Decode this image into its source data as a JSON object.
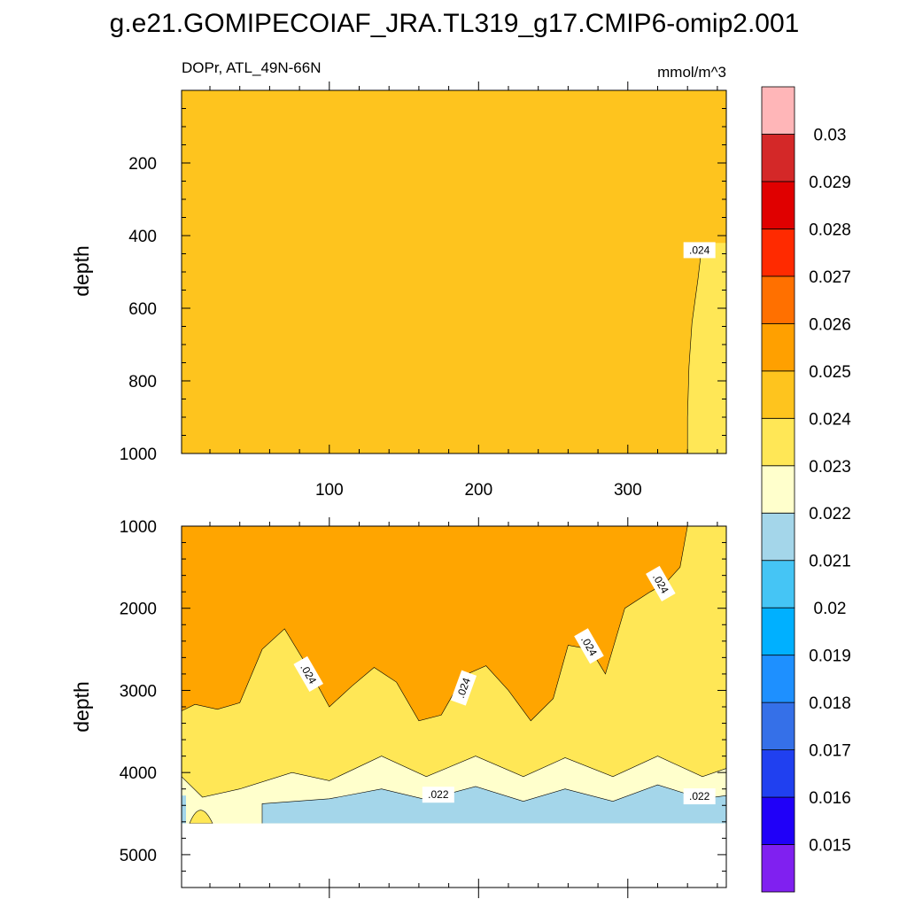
{
  "title": "g.e21.GOMIPECOIAF_JRA.TL319_g17.CMIP6-omip2.001",
  "subtitle_left": "DOPr, ATL_49N-66N",
  "subtitle_right": "mmol/m^3",
  "colors": {
    "c_0235": "#FEC41E",
    "c_0245": "#FFA500",
    "c_0230": "#FFE756",
    "c_0220": "#FFFFCC",
    "c_0215": "#A4D6EA",
    "outline": "#000000"
  },
  "colorbar": {
    "levels": [
      "0.015",
      "0.016",
      "0.017",
      "0.018",
      "0.019",
      "0.02",
      "0.021",
      "0.022",
      "0.023",
      "0.024",
      "0.025",
      "0.026",
      "0.027",
      "0.028",
      "0.029",
      "0.03"
    ],
    "colors_bottom_to_top": [
      "#8020F0",
      "#2000F8",
      "#2040F0",
      "#3570E8",
      "#1E90FF",
      "#00B0FF",
      "#45C5F5",
      "#A4D6EA",
      "#FFFFCC",
      "#FFE756",
      "#FEC41E",
      "#FFA000",
      "#FF7000",
      "#FF2A00",
      "#E00000",
      "#D42828",
      "#FFB6B8"
    ]
  },
  "chart_data": [
    {
      "type": "contour",
      "name": "upper panel",
      "ylabel": "depth",
      "xlim": [
        1,
        366
      ],
      "ylim": [
        0,
        1000
      ],
      "y_reversed": true,
      "x_ticks": [
        100,
        200,
        300
      ],
      "y_ticks": [
        200,
        400,
        600,
        800,
        1000
      ],
      "background_interval": "0.024-0.025",
      "region_023_024": {
        "interval": "0.023-0.024",
        "boundary_x_at_depth": [
          {
            "depth": 420,
            "x": 351
          },
          {
            "depth": 450,
            "x": 349
          },
          {
            "depth": 520,
            "x": 347
          },
          {
            "depth": 580,
            "x": 345
          },
          {
            "depth": 640,
            "x": 343
          },
          {
            "depth": 760,
            "x": 341
          },
          {
            "depth": 900,
            "x": 340
          },
          {
            "depth": 1000,
            "x": 340
          }
        ]
      },
      "contour_labels": [
        {
          "text": ".024",
          "x": 348,
          "depth": 440
        }
      ]
    },
    {
      "type": "contour",
      "name": "lower panel",
      "ylabel": "depth",
      "xlim": [
        1,
        366
      ],
      "ylim": [
        1000,
        5400
      ],
      "y_reversed": true,
      "y_ticks": [
        1000,
        2000,
        3000,
        4000,
        5000
      ],
      "missing_below_depth": 4620,
      "contour_024_depth": [
        {
          "x": 1,
          "depth": 3250
        },
        {
          "x": 10,
          "depth": 3170
        },
        {
          "x": 25,
          "depth": 3230
        },
        {
          "x": 40,
          "depth": 3150
        },
        {
          "x": 55,
          "depth": 2500
        },
        {
          "x": 70,
          "depth": 2250
        },
        {
          "x": 85,
          "depth": 2700
        },
        {
          "x": 100,
          "depth": 3200
        },
        {
          "x": 115,
          "depth": 2950
        },
        {
          "x": 130,
          "depth": 2720
        },
        {
          "x": 145,
          "depth": 2900
        },
        {
          "x": 160,
          "depth": 3370
        },
        {
          "x": 175,
          "depth": 3300
        },
        {
          "x": 190,
          "depth": 2820
        },
        {
          "x": 205,
          "depth": 2700
        },
        {
          "x": 220,
          "depth": 3000
        },
        {
          "x": 235,
          "depth": 3370
        },
        {
          "x": 250,
          "depth": 3100
        },
        {
          "x": 260,
          "depth": 2450
        },
        {
          "x": 275,
          "depth": 2500
        },
        {
          "x": 285,
          "depth": 2800
        },
        {
          "x": 298,
          "depth": 2000
        },
        {
          "x": 315,
          "depth": 1800
        },
        {
          "x": 325,
          "depth": 1700
        },
        {
          "x": 335,
          "depth": 1500
        },
        {
          "x": 340,
          "depth": 1000
        }
      ],
      "contour_023_depth": [
        {
          "x": 1,
          "depth": 4050
        },
        {
          "x": 15,
          "depth": 4300
        },
        {
          "x": 40,
          "depth": 4200
        },
        {
          "x": 75,
          "depth": 4000
        },
        {
          "x": 100,
          "depth": 4100
        },
        {
          "x": 135,
          "depth": 3800
        },
        {
          "x": 165,
          "depth": 4050
        },
        {
          "x": 198,
          "depth": 3800
        },
        {
          "x": 230,
          "depth": 4050
        },
        {
          "x": 258,
          "depth": 3820
        },
        {
          "x": 290,
          "depth": 4050
        },
        {
          "x": 320,
          "depth": 3800
        },
        {
          "x": 350,
          "depth": 4050
        },
        {
          "x": 366,
          "depth": 3950
        }
      ],
      "contour_022_depth": [
        {
          "x": 55,
          "depth": 4380
        },
        {
          "x": 100,
          "depth": 4320
        },
        {
          "x": 135,
          "depth": 4200
        },
        {
          "x": 165,
          "depth": 4330
        },
        {
          "x": 198,
          "depth": 4170
        },
        {
          "x": 230,
          "depth": 4350
        },
        {
          "x": 258,
          "depth": 4200
        },
        {
          "x": 290,
          "depth": 4350
        },
        {
          "x": 320,
          "depth": 4150
        },
        {
          "x": 350,
          "depth": 4320
        },
        {
          "x": 366,
          "depth": 4280
        }
      ],
      "contour_labels": [
        {
          "text": ".024",
          "x": 86,
          "depth": 2800
        },
        {
          "text": ".024",
          "x": 190,
          "depth": 2970
        },
        {
          "text": ".024",
          "x": 274,
          "depth": 2460
        },
        {
          "text": ".024",
          "x": 322,
          "depth": 1700
        },
        {
          "text": ".022",
          "x": 173,
          "depth": 4270
        },
        {
          "text": ".022",
          "x": 348,
          "depth": 4290
        }
      ]
    }
  ]
}
